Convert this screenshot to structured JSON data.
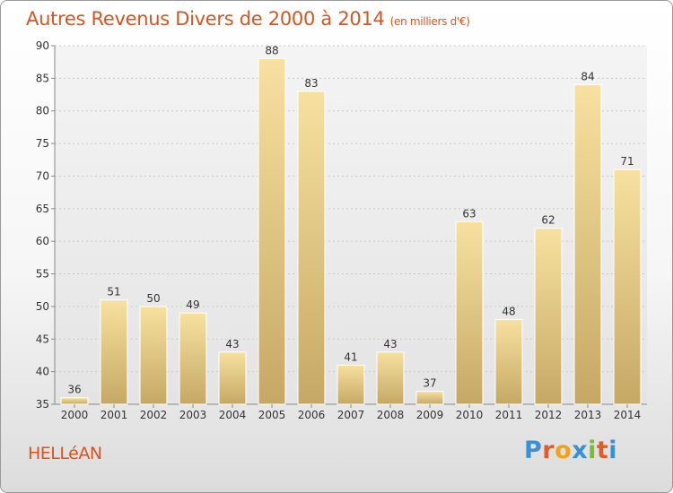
{
  "chart_data": {
    "type": "bar",
    "title": "Autres Revenus Divers de 2000 à 2014",
    "unit_label": "(en milliers d'€)",
    "categories": [
      "2000",
      "2001",
      "2002",
      "2003",
      "2004",
      "2005",
      "2006",
      "2007",
      "2008",
      "2009",
      "2010",
      "2011",
      "2012",
      "2013",
      "2014"
    ],
    "values": [
      36,
      51,
      50,
      49,
      43,
      88,
      83,
      41,
      43,
      37,
      63,
      48,
      62,
      84,
      71
    ],
    "ylim": [
      35,
      90
    ],
    "yticks": [
      35,
      40,
      45,
      50,
      55,
      60,
      65,
      70,
      75,
      80,
      85,
      90
    ],
    "grid": true,
    "bar_color": "#e8cc7e"
  },
  "footer": {
    "place_name": "HELLéAN",
    "logo_text": "Proxiti"
  },
  "colors": {
    "title": "#d9541f",
    "logo_letters": [
      "#3a8fd6",
      "#e25c28",
      "#f0a21b",
      "#3a8fd6",
      "#7cbb2e",
      "#e25c28",
      "#3a8fd6"
    ]
  }
}
